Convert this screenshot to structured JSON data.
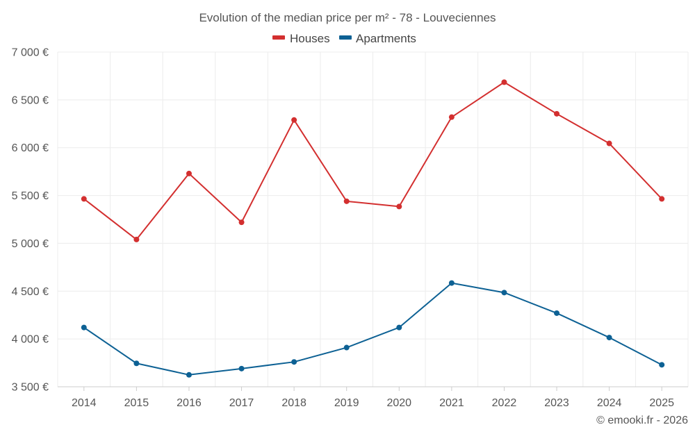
{
  "chart_data": {
    "type": "line",
    "title": "Evolution of the median price per m² - 78 - Louveciennes",
    "categories": [
      "2014",
      "2015",
      "2016",
      "2017",
      "2018",
      "2019",
      "2020",
      "2021",
      "2022",
      "2023",
      "2024",
      "2025"
    ],
    "series": [
      {
        "name": "Houses",
        "color": "#d32f2f",
        "values": [
          5465,
          5040,
          5730,
          5220,
          6290,
          5440,
          5385,
          6320,
          6685,
          6355,
          6045,
          5465
        ]
      },
      {
        "name": "Apartments",
        "color": "#0d6194",
        "values": [
          4120,
          3745,
          3625,
          3690,
          3760,
          3910,
          4120,
          4585,
          4485,
          4270,
          4015,
          3730
        ]
      }
    ],
    "y_ticks": [
      {
        "value": 3500,
        "label": "3 500 €"
      },
      {
        "value": 4000,
        "label": "4 000 €"
      },
      {
        "value": 4500,
        "label": "4 500 €"
      },
      {
        "value": 5000,
        "label": "5 000 €"
      },
      {
        "value": 5500,
        "label": "5 500 €"
      },
      {
        "value": 6000,
        "label": "6 000 €"
      },
      {
        "value": 6500,
        "label": "6 500 €"
      },
      {
        "value": 7000,
        "label": "7 000 €"
      }
    ],
    "ylim": [
      3500,
      7000
    ],
    "xlabel": "",
    "ylabel": "",
    "grid": true,
    "legend_position": "top-center"
  },
  "credit": "© emooki.fr - 2026"
}
